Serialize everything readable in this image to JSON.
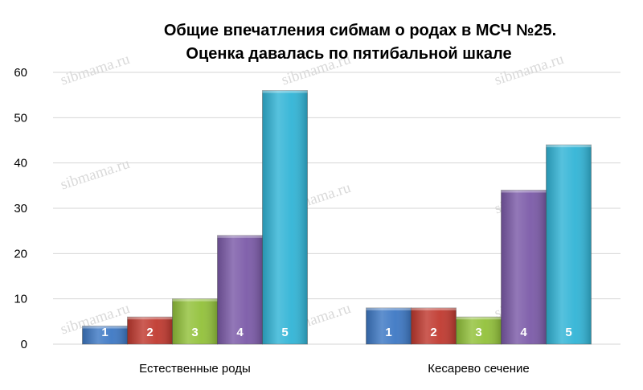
{
  "chart_data": {
    "type": "bar",
    "title": "Общие впечатления сибмам о родах в МСЧ №25.",
    "subtitle": "Оценка давалась по пятибальной шкале",
    "categories": [
      "Естественные роды",
      "Кесарево сечение"
    ],
    "series": [
      {
        "name": "1",
        "color": "#3d78c4",
        "values": [
          4,
          8
        ]
      },
      {
        "name": "2",
        "color": "#c0392f",
        "values": [
          6,
          8
        ]
      },
      {
        "name": "3",
        "color": "#92c13a",
        "values": [
          10,
          6
        ]
      },
      {
        "name": "4",
        "color": "#7b5aa8",
        "values": [
          24,
          34
        ]
      },
      {
        "name": "5",
        "color": "#31b4d6",
        "values": [
          56,
          44
        ]
      }
    ],
    "ylim": [
      0,
      60
    ],
    "yticks": [
      "0",
      "10",
      "20",
      "30",
      "40",
      "50",
      "60"
    ],
    "grid": true,
    "legend": "none",
    "watermark": "sibmama.ru"
  }
}
